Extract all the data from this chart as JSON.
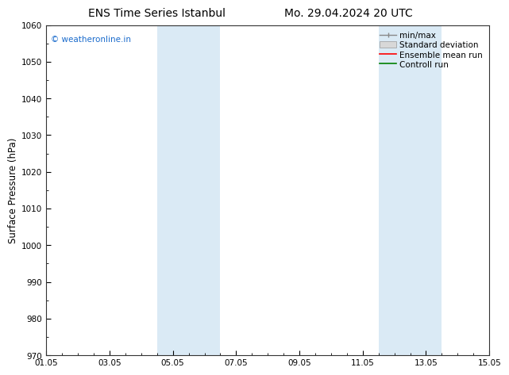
{
  "title_left": "ENS Time Series Istanbul",
  "title_right": "Mo. 29.04.2024 20 UTC",
  "ylabel": "Surface Pressure (hPa)",
  "ylim": [
    970,
    1060
  ],
  "yticks": [
    970,
    980,
    990,
    1000,
    1010,
    1020,
    1030,
    1040,
    1050,
    1060
  ],
  "xlim_num": [
    0,
    14
  ],
  "xtick_positions": [
    0,
    2,
    4,
    6,
    8,
    10,
    12,
    14
  ],
  "xtick_labels": [
    "01.05",
    "03.05",
    "05.05",
    "07.05",
    "09.05",
    "11.05",
    "13.05",
    "15.05"
  ],
  "shaded_bands": [
    {
      "xmin": 3.5,
      "xmax": 5.5
    },
    {
      "xmin": 10.5,
      "xmax": 12.5
    }
  ],
  "band_color": "#daeaf5",
  "watermark": "© weatheronline.in",
  "watermark_color": "#1a6bcc",
  "legend_labels": [
    "min/max",
    "Standard deviation",
    "Ensemble mean run",
    "Controll run"
  ],
  "legend_line_colors": [
    "#888888",
    "#bbbbbb",
    "#ff0000",
    "#008000"
  ],
  "background_color": "#ffffff",
  "grid_color": "#bbbbbb",
  "title_fontsize": 10,
  "tick_fontsize": 7.5,
  "ylabel_fontsize": 8.5,
  "legend_fontsize": 7.5
}
